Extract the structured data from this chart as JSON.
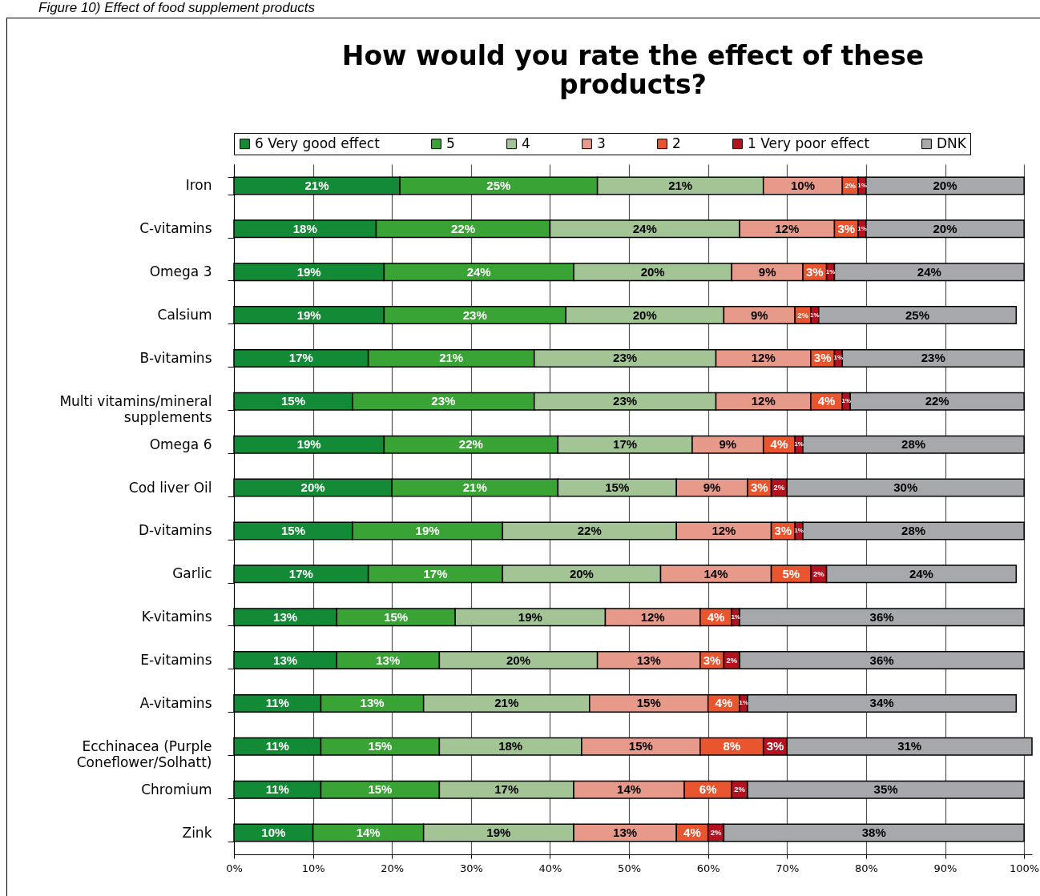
{
  "chart_data": {
    "type": "bar",
    "orientation": "horizontal",
    "stacked": true,
    "title": "How would you rate the effect of these products?",
    "annotations": [
      "Figure 10)    Effect of food supplement products"
    ],
    "categories": [
      "Iron",
      "C-vitamins",
      "Omega 3",
      "Calsium",
      "B-vitamins",
      "Multi vitamins/mineral supplements",
      "Omega 6",
      "Cod liver Oil",
      "D-vitamins",
      "Garlic",
      "K-vitamins",
      "E-vitamins",
      "A-vitamins",
      "Ecchinacea (Purple Coneflower/Solhatt)",
      "Chromium",
      "Zink"
    ],
    "series": [
      {
        "name": "6 Very good effect",
        "color": "#138a36",
        "values": [
          21,
          18,
          19,
          19,
          17,
          15,
          19,
          20,
          15,
          17,
          13,
          13,
          11,
          11,
          11,
          10
        ],
        "value_labels": [
          "21%",
          "18%",
          "19%",
          "19%",
          "17%",
          "15%",
          "19%",
          "20%",
          "15%",
          "17%",
          "13%",
          "13%",
          "11%",
          "11%",
          "11%",
          "10%"
        ]
      },
      {
        "name": "5",
        "color": "#3aa335",
        "values": [
          25,
          22,
          24,
          23,
          21,
          23,
          22,
          21,
          19,
          17,
          15,
          13,
          13,
          15,
          15,
          14
        ],
        "value_labels": [
          "25%",
          "22%",
          "24%",
          "23%",
          "21%",
          "23%",
          "22%",
          "21%",
          "19%",
          "17%",
          "15%",
          "13%",
          "13%",
          "15%",
          "15%",
          "14%"
        ]
      },
      {
        "name": "4",
        "color": "#a3c495",
        "values": [
          21,
          24,
          20,
          20,
          23,
          23,
          17,
          15,
          22,
          20,
          19,
          20,
          21,
          18,
          17,
          19
        ],
        "value_labels": [
          "21%",
          "24%",
          "20%",
          "20%",
          "23%",
          "23%",
          "17%",
          "15%",
          "22%",
          "20%",
          "19%",
          "20%",
          "21%",
          "18%",
          "17%",
          "19%"
        ]
      },
      {
        "name": "3",
        "color": "#e89a8a",
        "values": [
          10,
          12,
          9,
          9,
          12,
          12,
          9,
          9,
          12,
          14,
          12,
          13,
          15,
          15,
          14,
          13
        ],
        "value_labels": [
          "10%",
          "12%",
          "9%",
          "9%",
          "12%",
          "12%",
          "9%",
          "9%",
          "12%",
          "14%",
          "12%",
          "13%",
          "15%",
          "15%",
          "14%",
          "13%"
        ]
      },
      {
        "name": "2",
        "color": "#e8552f",
        "values": [
          2,
          3,
          3,
          2,
          3,
          4,
          4,
          3,
          3,
          5,
          4,
          3,
          4,
          8,
          6,
          4
        ],
        "value_labels": [
          "2%",
          "3%",
          "3%",
          "2%",
          "3%",
          "4%",
          "4%",
          "3%",
          "3%",
          "5%",
          "4%",
          "3%",
          "4%",
          "8%",
          "6%",
          "4%"
        ]
      },
      {
        "name": "1 Very poor effect",
        "color": "#b5111e",
        "values": [
          1,
          1,
          1,
          1,
          1,
          1,
          1,
          2,
          1,
          2,
          1,
          2,
          1,
          3,
          2,
          2
        ],
        "value_labels": [
          "1%",
          "1%",
          "1%",
          "1%",
          "1%",
          "1%",
          "1%",
          "2%",
          "1%",
          "2%",
          "1%",
          "2%",
          "1%",
          "3%",
          "2%",
          "2%"
        ]
      },
      {
        "name": "DNK",
        "color": "#a7a8ab",
        "values": [
          20,
          20,
          24,
          25,
          23,
          22,
          28,
          30,
          28,
          24,
          36,
          36,
          34,
          31,
          35,
          38
        ],
        "value_labels": [
          "20%",
          "20%",
          "24%",
          "25%",
          "23%",
          "22%",
          "28%",
          "30%",
          "28%",
          "24%",
          "36%",
          "36%",
          "34%",
          "31%",
          "35%",
          "38%"
        ]
      }
    ],
    "xlim": [
      0,
      101
    ],
    "xticks": [
      {
        "value": 0,
        "label": "0%"
      },
      {
        "value": 10,
        "label": "10%"
      },
      {
        "value": 20,
        "label": "20%"
      },
      {
        "value": 30,
        "label": "30%"
      },
      {
        "value": 40,
        "label": "40%"
      },
      {
        "value": 50,
        "label": "50%"
      },
      {
        "value": 60,
        "label": "60%"
      },
      {
        "value": 70,
        "label": "70%"
      },
      {
        "value": 80,
        "label": "80%"
      },
      {
        "value": 90,
        "label": "90%"
      },
      {
        "value": 100,
        "label": "100%"
      }
    ],
    "grid": "x",
    "legend": "top"
  }
}
